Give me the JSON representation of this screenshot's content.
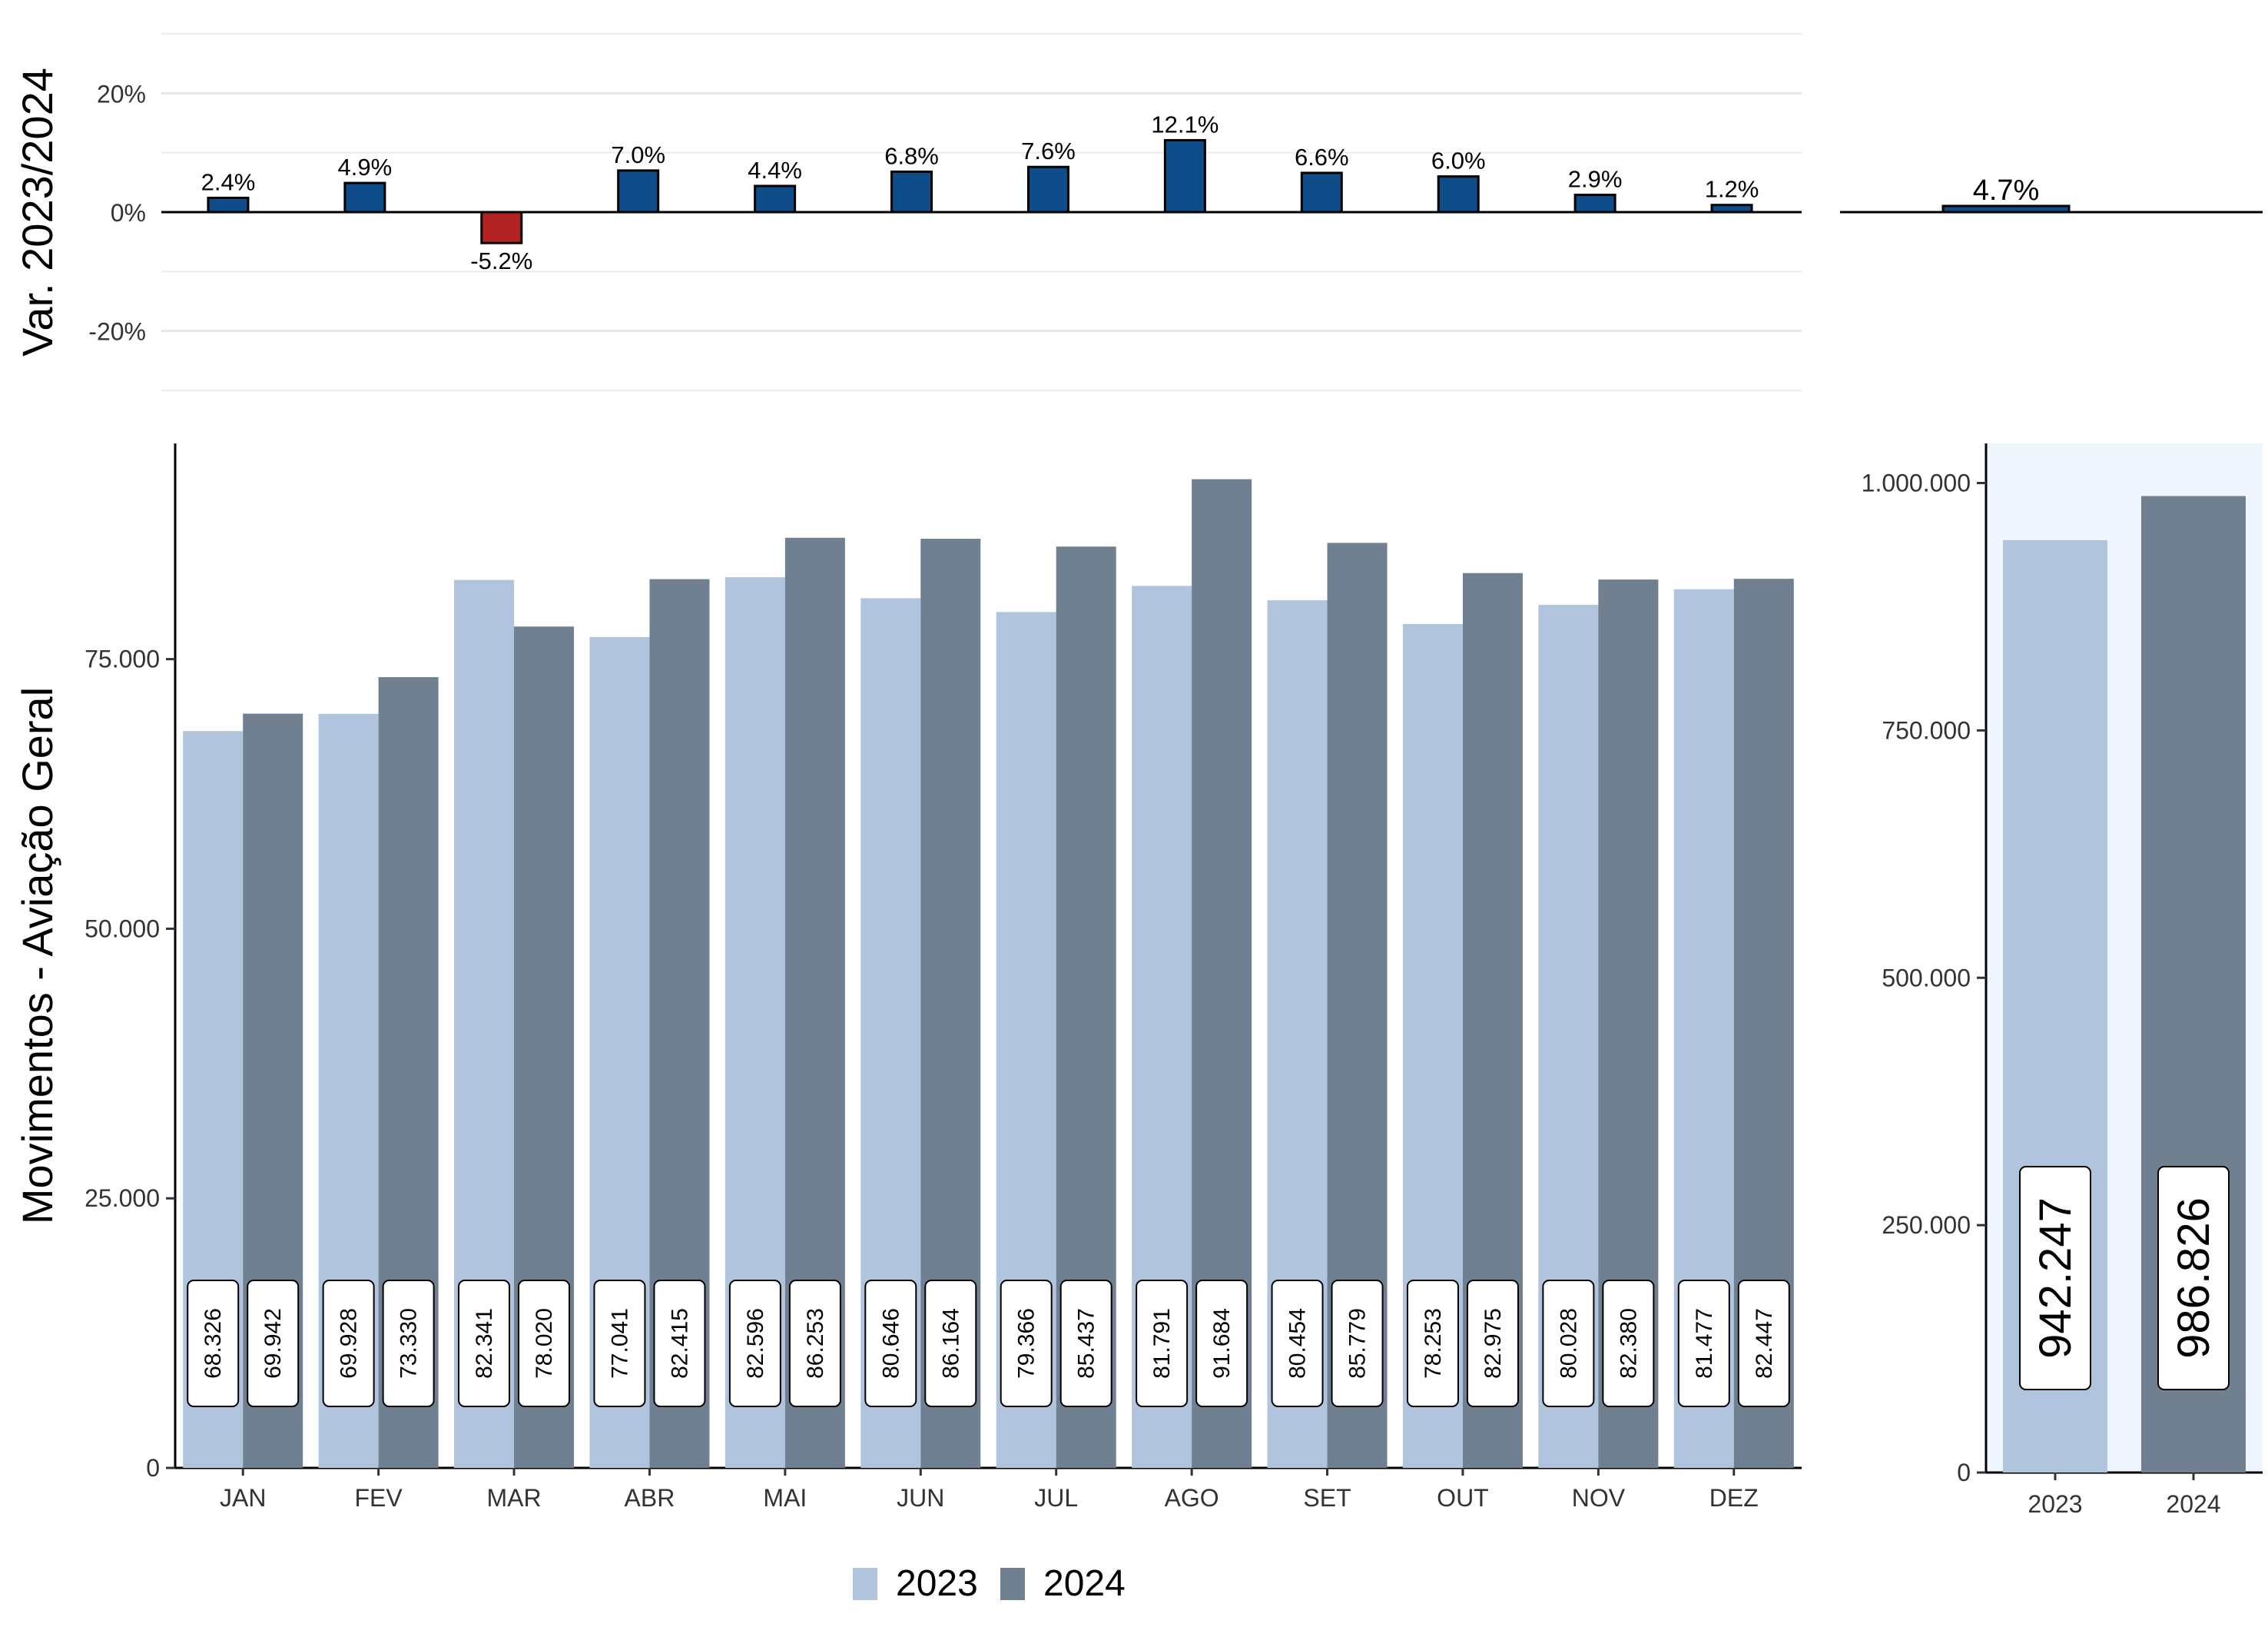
{
  "chart_data": [
    {
      "type": "bar",
      "panel": "monthly variation",
      "ylabel": "Var. 2023/2024",
      "ylim": [
        -30,
        30
      ],
      "yticks": [
        20,
        0,
        -20
      ],
      "ytick_labels": [
        "20%",
        "0%",
        "-20%"
      ],
      "categories": [
        "JAN",
        "FEV",
        "MAR",
        "ABR",
        "MAI",
        "JUN",
        "JUL",
        "AGO",
        "SET",
        "OUT",
        "NOV",
        "DEZ"
      ],
      "values": [
        2.4,
        4.9,
        -5.2,
        7.0,
        4.4,
        6.8,
        7.6,
        12.1,
        6.6,
        6.0,
        2.9,
        1.2
      ],
      "labels": [
        "2.4%",
        "4.9%",
        "-5.2%",
        "7.0%",
        "4.4%",
        "6.8%",
        "7.6%",
        "12.1%",
        "6.6%",
        "6.0%",
        "2.9%",
        "1.2%"
      ],
      "colors": {
        "positive": "#0f4c8a",
        "negative": "#b22222"
      },
      "grid": "horizontal"
    },
    {
      "type": "bar",
      "panel": "total variation",
      "categories": [
        ""
      ],
      "values": [
        4.7
      ],
      "labels": [
        "4.7%"
      ],
      "ylim": [
        -30,
        30
      ],
      "colors": {
        "positive": "#0f4c8a"
      }
    },
    {
      "type": "bar",
      "panel": "monthly movements",
      "ylabel": "Movimentos - Aviação Geral",
      "ylim": [
        0,
        95000
      ],
      "yticks": [
        0,
        25000,
        50000,
        75000
      ],
      "ytick_labels": [
        "0",
        "25.000",
        "50.000",
        "75.000"
      ],
      "categories": [
        "JAN",
        "FEV",
        "MAR",
        "ABR",
        "MAI",
        "JUN",
        "JUL",
        "AGO",
        "SET",
        "OUT",
        "NOV",
        "DEZ"
      ],
      "series": [
        {
          "name": "2023",
          "color": "#b0c4de",
          "values": [
            68326,
            69928,
            82341,
            77041,
            82596,
            80646,
            79366,
            81791,
            80454,
            78253,
            80028,
            81477
          ],
          "labels": [
            "68.326",
            "69.928",
            "82.341",
            "77.041",
            "82.596",
            "80.646",
            "79.366",
            "81.791",
            "80.454",
            "78.253",
            "80.028",
            "81.477"
          ]
        },
        {
          "name": "2024",
          "color": "#708090",
          "values": [
            69942,
            73330,
            78020,
            82415,
            86253,
            86164,
            85437,
            91684,
            85779,
            82975,
            82380,
            82447
          ],
          "labels": [
            "69.942",
            "73.330",
            "78.020",
            "82.415",
            "86.253",
            "86.164",
            "85.437",
            "91.684",
            "85.779",
            "82.975",
            "82.380",
            "82.447"
          ]
        }
      ],
      "grid": "none"
    },
    {
      "type": "bar",
      "panel": "annual totals",
      "categories": [
        "2023",
        "2024"
      ],
      "values": [
        942247,
        986826
      ],
      "labels": [
        "942.247",
        "986.826"
      ],
      "colors": [
        "#b0c4de",
        "#708090"
      ],
      "ylim": [
        0,
        1040000
      ],
      "yticks": [
        0,
        250000,
        500000,
        750000,
        1000000
      ],
      "ytick_labels": [
        "0",
        "250.000",
        "500.000",
        "750.000",
        "1.000.000"
      ],
      "background": "#f0f6fd"
    }
  ],
  "legend": {
    "position": "bottom",
    "items": [
      {
        "label": "2023",
        "color": "#b0c4de"
      },
      {
        "label": "2024",
        "color": "#708090"
      }
    ]
  }
}
